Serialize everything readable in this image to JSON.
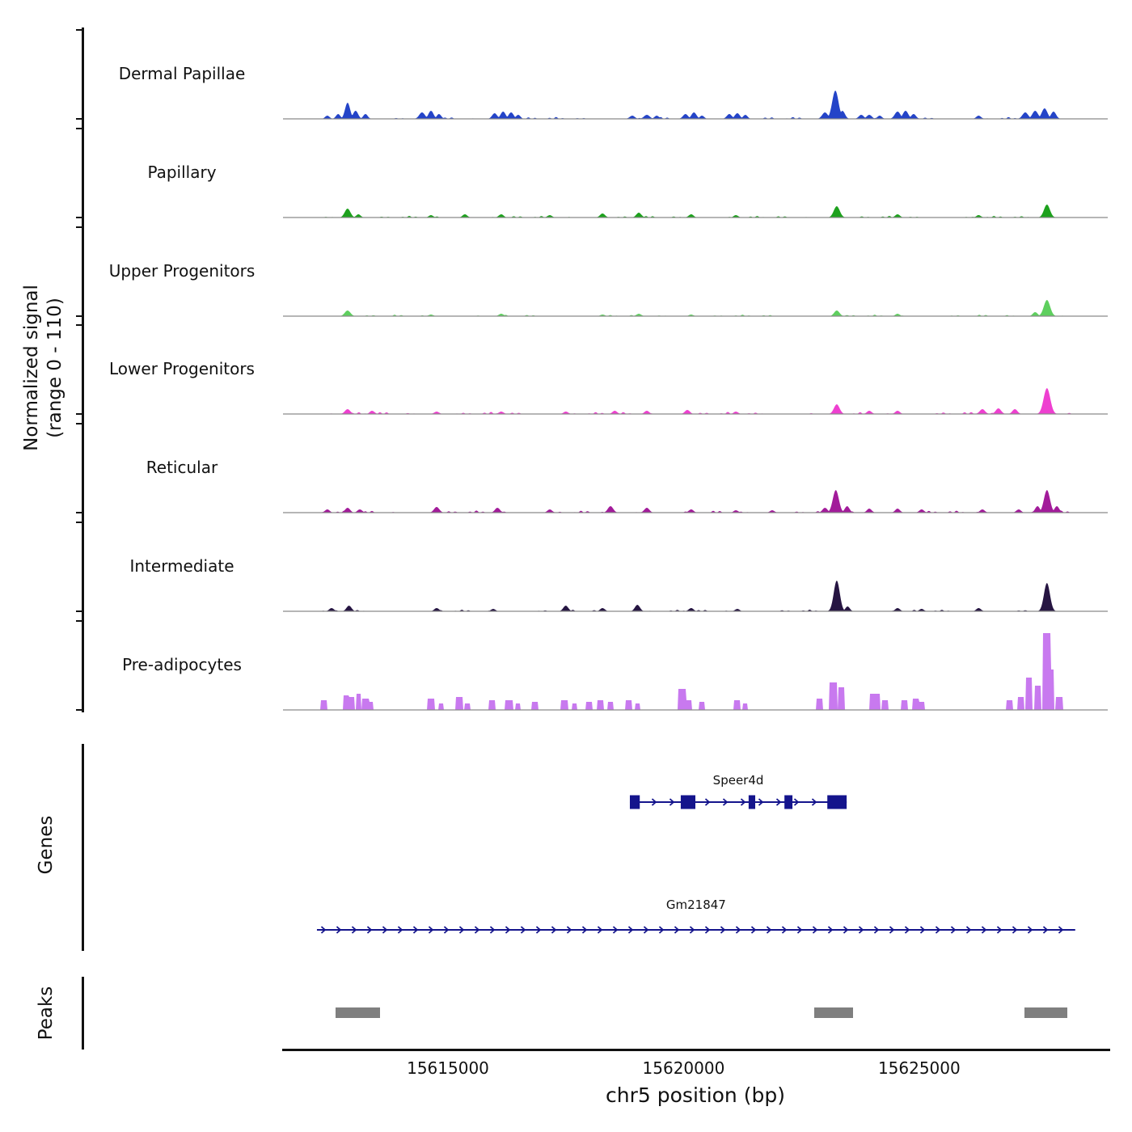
{
  "figure": {
    "y_axis_label_line1": "Normalized signal",
    "y_axis_label_line2": "(range 0 - 110)",
    "genes_label": "Genes",
    "peaks_label": "Peaks",
    "x_axis_label": "chr5 position (bp)"
  },
  "chart_data": {
    "type": "area",
    "title": "",
    "region": {
      "chrom": "chr5",
      "start": 15611500,
      "end": 15629000
    },
    "x_ticks": [
      15615000,
      15620000,
      15625000
    ],
    "ylim": [
      0,
      110
    ],
    "gene_color": "#14148c",
    "peak_color": "#7f7f7f",
    "tracks": [
      {
        "name": "Dermal Papillae",
        "color": "#2444c8",
        "style": "wiggle",
        "noise": 1.2,
        "peaks": [
          [
            15612440,
            4,
            140
          ],
          [
            15612670,
            6,
            140
          ],
          [
            15612870,
            20,
            160
          ],
          [
            15613040,
            10,
            160
          ],
          [
            15613250,
            6,
            140
          ],
          [
            15614450,
            8,
            180
          ],
          [
            15614640,
            10,
            160
          ],
          [
            15614810,
            6,
            140
          ],
          [
            15615990,
            7,
            160
          ],
          [
            15616170,
            9,
            160
          ],
          [
            15616340,
            8,
            160
          ],
          [
            15616490,
            5,
            140
          ],
          [
            15618910,
            4,
            160
          ],
          [
            15619220,
            5,
            180
          ],
          [
            15619430,
            4,
            140
          ],
          [
            15620040,
            6,
            160
          ],
          [
            15620220,
            8,
            160
          ],
          [
            15620390,
            4,
            140
          ],
          [
            15620970,
            6,
            160
          ],
          [
            15621140,
            7,
            160
          ],
          [
            15621310,
            5,
            140
          ],
          [
            15623000,
            8,
            180
          ],
          [
            15623220,
            35,
            200
          ],
          [
            15623370,
            10,
            160
          ],
          [
            15623770,
            5,
            160
          ],
          [
            15623940,
            5,
            160
          ],
          [
            15624160,
            4,
            140
          ],
          [
            15624540,
            9,
            180
          ],
          [
            15624710,
            10,
            170
          ],
          [
            15624880,
            6,
            150
          ],
          [
            15626260,
            4,
            150
          ],
          [
            15627250,
            8,
            180
          ],
          [
            15627460,
            10,
            180
          ],
          [
            15627660,
            13,
            180
          ],
          [
            15627850,
            9,
            160
          ]
        ]
      },
      {
        "name": "Papillary",
        "color": "#1da11d",
        "style": "wiggle",
        "noise": 1.0,
        "peaks": [
          [
            15612870,
            11,
            180
          ],
          [
            15613100,
            4,
            140
          ],
          [
            15614640,
            3,
            140
          ],
          [
            15615360,
            4,
            150
          ],
          [
            15616130,
            4,
            150
          ],
          [
            15617160,
            3,
            140
          ],
          [
            15618280,
            5,
            160
          ],
          [
            15619050,
            6,
            160
          ],
          [
            15620160,
            4,
            150
          ],
          [
            15621110,
            3,
            140
          ],
          [
            15623250,
            14,
            190
          ],
          [
            15624540,
            4,
            150
          ],
          [
            15626260,
            3,
            140
          ],
          [
            15627710,
            16,
            190
          ]
        ]
      },
      {
        "name": "Upper Progenitors",
        "color": "#5ecf5e",
        "style": "wiggle",
        "noise": 0.9,
        "peaks": [
          [
            15612870,
            7,
            180
          ],
          [
            15614640,
            2,
            140
          ],
          [
            15616130,
            3,
            150
          ],
          [
            15618280,
            2,
            140
          ],
          [
            15619050,
            3,
            150
          ],
          [
            15620160,
            2,
            140
          ],
          [
            15623250,
            7,
            170
          ],
          [
            15624540,
            3,
            140
          ],
          [
            15627460,
            5,
            150
          ],
          [
            15627710,
            20,
            200
          ]
        ]
      },
      {
        "name": "Lower Progenitors",
        "color": "#ee3fd0",
        "style": "wiggle",
        "noise": 1.3,
        "peaks": [
          [
            15612870,
            6,
            170
          ],
          [
            15613390,
            4,
            150
          ],
          [
            15614760,
            3,
            150
          ],
          [
            15616130,
            3,
            150
          ],
          [
            15617500,
            3,
            150
          ],
          [
            15618540,
            4,
            150
          ],
          [
            15619220,
            4,
            150
          ],
          [
            15620080,
            5,
            160
          ],
          [
            15621110,
            3,
            140
          ],
          [
            15623250,
            12,
            180
          ],
          [
            15623940,
            4,
            150
          ],
          [
            15624540,
            4,
            150
          ],
          [
            15626340,
            6,
            170
          ],
          [
            15626680,
            7,
            170
          ],
          [
            15627030,
            6,
            160
          ],
          [
            15627710,
            32,
            210
          ]
        ]
      },
      {
        "name": "Reticular",
        "color": "#a21b9a",
        "style": "wiggle",
        "noise": 1.3,
        "peaks": [
          [
            15612440,
            4,
            150
          ],
          [
            15612870,
            6,
            160
          ],
          [
            15613130,
            4,
            150
          ],
          [
            15614760,
            7,
            170
          ],
          [
            15616050,
            6,
            160
          ],
          [
            15617160,
            4,
            150
          ],
          [
            15618450,
            8,
            170
          ],
          [
            15619220,
            6,
            160
          ],
          [
            15620160,
            4,
            150
          ],
          [
            15621110,
            3,
            140
          ],
          [
            15621880,
            3,
            140
          ],
          [
            15623000,
            6,
            160
          ],
          [
            15623230,
            28,
            190
          ],
          [
            15623470,
            8,
            150
          ],
          [
            15623940,
            5,
            150
          ],
          [
            15624540,
            5,
            150
          ],
          [
            15625050,
            4,
            150
          ],
          [
            15626340,
            4,
            150
          ],
          [
            15627110,
            4,
            150
          ],
          [
            15627510,
            8,
            150
          ],
          [
            15627710,
            28,
            190
          ],
          [
            15627920,
            8,
            150
          ]
        ]
      },
      {
        "name": "Intermediate",
        "color": "#261542",
        "style": "wiggle",
        "noise": 1.0,
        "peaks": [
          [
            15612530,
            4,
            150
          ],
          [
            15612900,
            7,
            160
          ],
          [
            15614760,
            4,
            150
          ],
          [
            15615960,
            3,
            140
          ],
          [
            15617500,
            7,
            160
          ],
          [
            15618280,
            4,
            150
          ],
          [
            15619020,
            8,
            160
          ],
          [
            15620160,
            4,
            150
          ],
          [
            15621140,
            3,
            140
          ],
          [
            15623250,
            38,
            190
          ],
          [
            15623480,
            6,
            140
          ],
          [
            15624540,
            4,
            150
          ],
          [
            15625050,
            3,
            140
          ],
          [
            15626260,
            4,
            150
          ],
          [
            15627710,
            35,
            190
          ]
        ]
      },
      {
        "name": "Pre-adipocytes",
        "color": "#c879ef",
        "style": "block",
        "noise": 0,
        "peaks": [
          [
            15612360,
            12,
            140
          ],
          [
            15612840,
            18,
            110
          ],
          [
            15612960,
            16,
            110
          ],
          [
            15613100,
            20,
            110
          ],
          [
            15613250,
            14,
            140
          ],
          [
            15613350,
            10,
            110
          ],
          [
            15614640,
            14,
            140
          ],
          [
            15614850,
            8,
            110
          ],
          [
            15615240,
            16,
            140
          ],
          [
            15615410,
            8,
            110
          ],
          [
            15615930,
            12,
            140
          ],
          [
            15616300,
            12,
            170
          ],
          [
            15616480,
            8,
            110
          ],
          [
            15616850,
            10,
            140
          ],
          [
            15617470,
            12,
            140
          ],
          [
            15617680,
            8,
            110
          ],
          [
            15617990,
            10,
            140
          ],
          [
            15618230,
            12,
            140
          ],
          [
            15618450,
            10,
            120
          ],
          [
            15618840,
            12,
            140
          ],
          [
            15619020,
            8,
            110
          ],
          [
            15619960,
            26,
            170
          ],
          [
            15620110,
            12,
            120
          ],
          [
            15620390,
            10,
            120
          ],
          [
            15621140,
            12,
            140
          ],
          [
            15621310,
            8,
            110
          ],
          [
            15622880,
            14,
            140
          ],
          [
            15623170,
            34,
            170
          ],
          [
            15623340,
            28,
            140
          ],
          [
            15624060,
            20,
            210
          ],
          [
            15624280,
            12,
            140
          ],
          [
            15624680,
            12,
            140
          ],
          [
            15624930,
            14,
            140
          ],
          [
            15625050,
            10,
            120
          ],
          [
            15626910,
            12,
            140
          ],
          [
            15627150,
            16,
            140
          ],
          [
            15627320,
            40,
            140
          ],
          [
            15627510,
            30,
            140
          ],
          [
            15627710,
            95,
            170
          ],
          [
            15627800,
            50,
            120
          ],
          [
            15627970,
            16,
            140
          ]
        ]
      }
    ],
    "genes": [
      {
        "name": "Speer4d",
        "start": 15618860,
        "end": 15623460,
        "strand": "+",
        "exons": [
          [
            15618860,
            15619070
          ],
          [
            15619940,
            15620250
          ],
          [
            15621380,
            15621520
          ],
          [
            15622140,
            15622310
          ],
          [
            15623050,
            15623460
          ]
        ]
      },
      {
        "name": "Gm21847",
        "start": 15612220,
        "end": 15628310,
        "strand": "+",
        "exons": []
      }
    ],
    "peak_calls": [
      [
        15612620,
        15613560
      ],
      [
        15622770,
        15623600
      ],
      [
        15627230,
        15628140
      ]
    ]
  }
}
